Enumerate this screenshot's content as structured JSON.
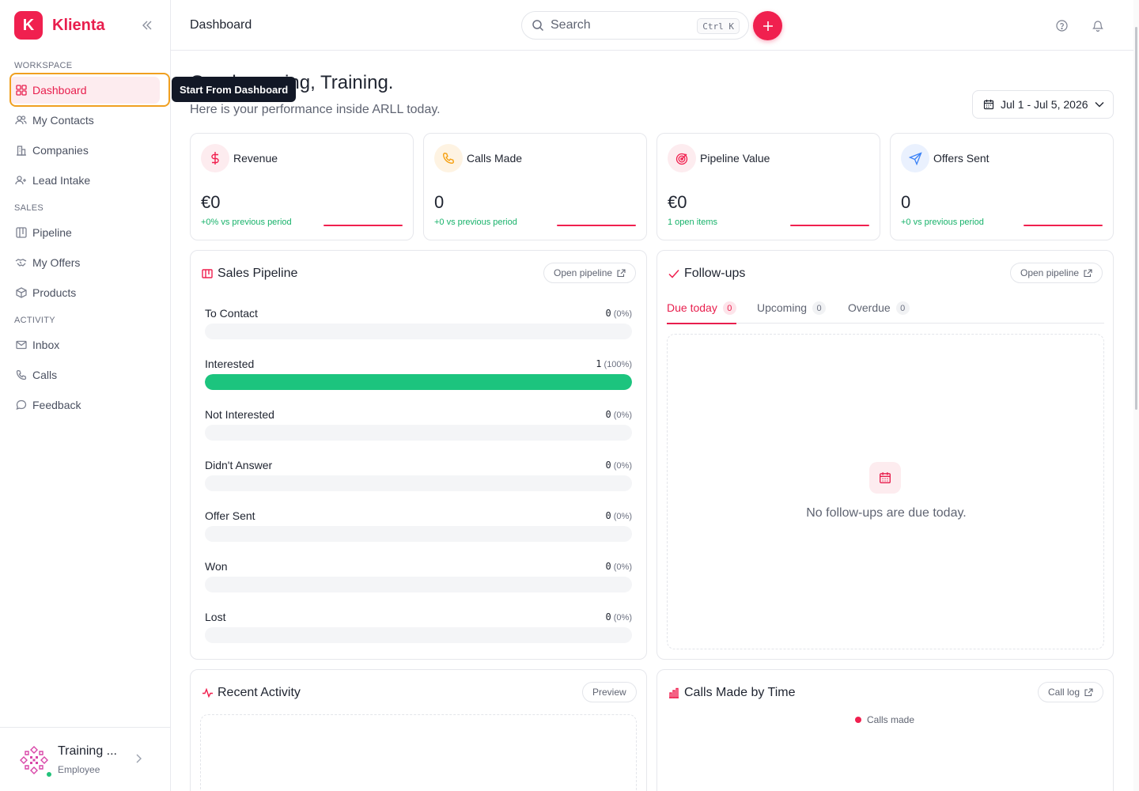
{
  "brand": {
    "logo_letter": "K",
    "name": "Klienta"
  },
  "sidebar": {
    "sections": [
      {
        "label": "WORKSPACE"
      },
      {
        "label": "SALES"
      },
      {
        "label": "ACTIVITY"
      }
    ],
    "items": [
      {
        "label": "Dashboard",
        "icon": "grid-icon",
        "active": true
      },
      {
        "label": "My Contacts",
        "icon": "users-icon"
      },
      {
        "label": "Companies",
        "icon": "building-icon"
      },
      {
        "label": "Lead Intake",
        "icon": "user-plus-icon"
      },
      {
        "label": "Pipeline",
        "icon": "kanban-icon"
      },
      {
        "label": "My Offers",
        "icon": "handshake-icon"
      },
      {
        "label": "Products",
        "icon": "box-icon"
      },
      {
        "label": "Inbox",
        "icon": "mail-icon"
      },
      {
        "label": "Calls",
        "icon": "phone-icon"
      },
      {
        "label": "Feedback",
        "icon": "chat-icon"
      }
    ],
    "tooltip": "Start From Dashboard",
    "user": {
      "name": "Training ...",
      "role": "Employee"
    }
  },
  "header": {
    "title": "Dashboard",
    "search_placeholder": "Search",
    "shortcut": "Ctrl K"
  },
  "greeting": {
    "title": "Good morning, Training.",
    "subtitle": "Here is your performance inside ARLL today."
  },
  "date_range": "Jul 1 - Jul 5, 2026",
  "stats": [
    {
      "label": "Revenue",
      "value": "€0",
      "note": "+0% vs previous period",
      "icon": "dollar-icon",
      "color": "#f0204f"
    },
    {
      "label": "Calls Made",
      "value": "0",
      "note": "+0 vs previous period",
      "icon": "phone-icon",
      "color": "#f59e0b"
    },
    {
      "label": "Pipeline Value",
      "value": "€0",
      "note": "1 open items",
      "icon": "target-icon",
      "color": "#f0204f"
    },
    {
      "label": "Offers Sent",
      "value": "0",
      "note": "+0 vs previous period",
      "icon": "send-icon",
      "color": "#3b82f6"
    }
  ],
  "sales_pipeline": {
    "title": "Sales Pipeline",
    "button": "Open pipeline",
    "stages": [
      {
        "label": "To Contact",
        "count": "0",
        "pct": "(0%)",
        "fraction": 0
      },
      {
        "label": "Interested",
        "count": "1",
        "pct": "(100%)",
        "fraction": 1
      },
      {
        "label": "Not Interested",
        "count": "0",
        "pct": "(0%)",
        "fraction": 0
      },
      {
        "label": "Didn't Answer",
        "count": "0",
        "pct": "(0%)",
        "fraction": 0
      },
      {
        "label": "Offer Sent",
        "count": "0",
        "pct": "(0%)",
        "fraction": 0
      },
      {
        "label": "Won",
        "count": "0",
        "pct": "(0%)",
        "fraction": 0
      },
      {
        "label": "Lost",
        "count": "0",
        "pct": "(0%)",
        "fraction": 0
      }
    ]
  },
  "followups": {
    "title": "Follow-ups",
    "button": "Open pipeline",
    "tabs": [
      {
        "label": "Due today",
        "count": "0",
        "active": true
      },
      {
        "label": "Upcoming",
        "count": "0"
      },
      {
        "label": "Overdue",
        "count": "0"
      }
    ],
    "empty_text": "No follow-ups are due today."
  },
  "recent_activity": {
    "title": "Recent Activity",
    "button": "Preview"
  },
  "calls_by_time": {
    "title": "Calls Made by Time",
    "button": "Call log",
    "legend": "Calls made"
  },
  "colors": {
    "accent": "#f0204f",
    "success": "#1cc47e",
    "highlight": "#f0a020"
  }
}
